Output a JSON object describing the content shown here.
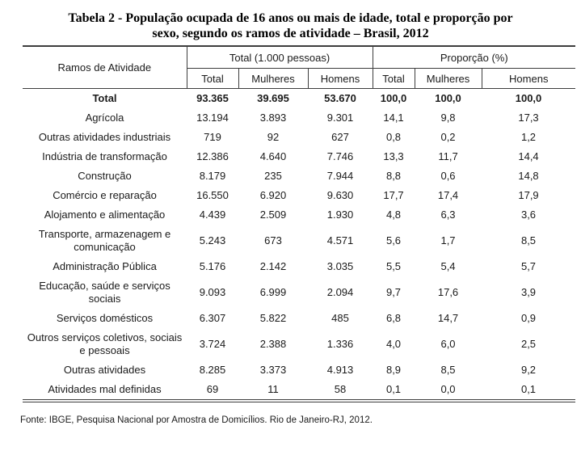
{
  "title": {
    "lines": [
      "Tabela 2 - População ocupada de 16 anos ou mais de idade, total e proporção por",
      "sexo, segundo os ramos de atividade – Brasil, 2012"
    ]
  },
  "table": {
    "row_header_label": "Ramos de Atividade",
    "group_headers": [
      "Total (1.000 pessoas)",
      "Proporção (%)"
    ],
    "sub_headers": [
      "Total",
      "Mulheres",
      "Homens",
      "Total",
      "Mulheres",
      "Homens"
    ],
    "rows": [
      {
        "label": "Total",
        "bold": true,
        "values": [
          "93.365",
          "39.695",
          "53.670",
          "100,0",
          "100,0",
          "100,0"
        ]
      },
      {
        "label": "Agrícola",
        "bold": false,
        "values": [
          "13.194",
          "3.893",
          "9.301",
          "14,1",
          "9,8",
          "17,3"
        ]
      },
      {
        "label": "Outras atividades industriais",
        "bold": false,
        "values": [
          "719",
          "92",
          "627",
          "0,8",
          "0,2",
          "1,2"
        ]
      },
      {
        "label": "Indústria de transformação",
        "bold": false,
        "values": [
          "12.386",
          "4.640",
          "7.746",
          "13,3",
          "11,7",
          "14,4"
        ]
      },
      {
        "label": "Construção",
        "bold": false,
        "values": [
          "8.179",
          "235",
          "7.944",
          "8,8",
          "0,6",
          "14,8"
        ]
      },
      {
        "label": "Comércio e reparação",
        "bold": false,
        "values": [
          "16.550",
          "6.920",
          "9.630",
          "17,7",
          "17,4",
          "17,9"
        ]
      },
      {
        "label": "Alojamento e alimentação",
        "bold": false,
        "values": [
          "4.439",
          "2.509",
          "1.930",
          "4,8",
          "6,3",
          "3,6"
        ]
      },
      {
        "label": "Transporte, armazenagem e comunicação",
        "bold": false,
        "values": [
          "5.243",
          "673",
          "4.571",
          "5,6",
          "1,7",
          "8,5"
        ]
      },
      {
        "label": "Administração Pública",
        "bold": false,
        "values": [
          "5.176",
          "2.142",
          "3.035",
          "5,5",
          "5,4",
          "5,7"
        ]
      },
      {
        "label": "Educação, saúde e serviços sociais",
        "bold": false,
        "values": [
          "9.093",
          "6.999",
          "2.094",
          "9,7",
          "17,6",
          "3,9"
        ]
      },
      {
        "label": "Serviços domésticos",
        "bold": false,
        "values": [
          "6.307",
          "5.822",
          "485",
          "6,8",
          "14,7",
          "0,9"
        ]
      },
      {
        "label": "Outros serviços coletivos, sociais e pessoais",
        "bold": false,
        "values": [
          "3.724",
          "2.388",
          "1.336",
          "4,0",
          "6,0",
          "2,5"
        ]
      },
      {
        "label": "Outras atividades",
        "bold": false,
        "values": [
          "8.285",
          "3.373",
          "4.913",
          "8,9",
          "8,5",
          "9,2"
        ]
      },
      {
        "label": "Atividades mal definidas",
        "bold": false,
        "values": [
          "69",
          "11",
          "58",
          "0,1",
          "0,0",
          "0,1"
        ]
      }
    ]
  },
  "footer": "Fonte: IBGE, Pesquisa Nacional por Amostra de Domicílios. Rio de Janeiro-RJ, 2012.",
  "colors": {
    "background": "#ffffff",
    "text": "#1a1a1a",
    "border": "#3d3d3d"
  }
}
